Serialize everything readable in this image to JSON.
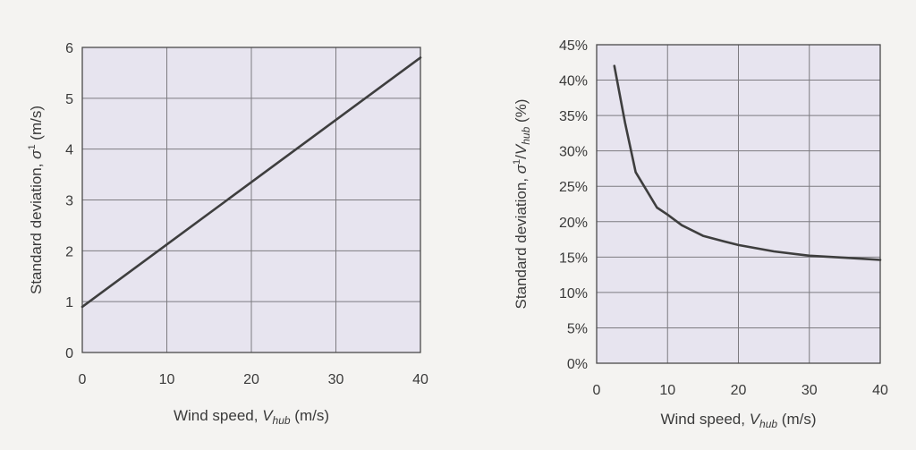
{
  "chart_data": [
    {
      "type": "line",
      "title": "",
      "xlabel": "Wind speed, V_hub (m/s)",
      "ylabel": "Standard deviation, σ¹ (m/s)",
      "xlabel_parts": {
        "text": "Wind speed, ",
        "var": "V",
        "sub": "hub",
        "unit": " (m/s)"
      },
      "ylabel_parts": {
        "text": "Standard deviation, ",
        "var": "σ",
        "sup": "1",
        "unit": " (m/s)"
      },
      "xlim": [
        0,
        40
      ],
      "ylim": [
        0,
        6
      ],
      "xticks": [
        0,
        10,
        20,
        30,
        40
      ],
      "yticks": [
        0,
        1,
        2,
        3,
        4,
        5,
        6
      ],
      "xtick_labels": [
        "0",
        "10",
        "20",
        "30",
        "40"
      ],
      "ytick_labels": [
        "0",
        "1",
        "2",
        "3",
        "4",
        "5",
        "6"
      ],
      "grid": true,
      "series": [
        {
          "x": [
            0,
            40
          ],
          "y": [
            0.9,
            5.8
          ]
        }
      ]
    },
    {
      "type": "line",
      "title": "",
      "xlabel": "Wind speed, V_hub (m/s)",
      "ylabel": "Standard deviation, σ¹/V_hub (%)",
      "xlabel_parts": {
        "text": "Wind speed, ",
        "var": "V",
        "sub": "hub",
        "unit": " (m/s)"
      },
      "ylabel_parts": {
        "text": "Standard deviation, ",
        "var": "σ",
        "sup": "1",
        "mid": "/",
        "var2": "V",
        "sub2": "hub",
        "unit": " (%)"
      },
      "xlim": [
        0,
        40
      ],
      "ylim": [
        0,
        45
      ],
      "xticks": [
        0,
        10,
        20,
        30,
        40
      ],
      "yticks": [
        0,
        5,
        10,
        15,
        20,
        25,
        30,
        35,
        40,
        45
      ],
      "xtick_labels": [
        "0",
        "10",
        "20",
        "30",
        "40"
      ],
      "ytick_labels": [
        "0%",
        "5%",
        "10%",
        "15%",
        "20%",
        "25%",
        "30%",
        "35%",
        "40%",
        "45%"
      ],
      "grid": true,
      "series": [
        {
          "x": [
            2.5,
            4,
            5.5,
            7,
            8.5,
            10,
            12,
            15,
            18,
            20,
            25,
            30,
            35,
            40
          ],
          "y": [
            42,
            34,
            27,
            24.5,
            22,
            21,
            19.5,
            18,
            17.2,
            16.7,
            15.8,
            15.2,
            14.9,
            14.6
          ]
        }
      ]
    }
  ]
}
